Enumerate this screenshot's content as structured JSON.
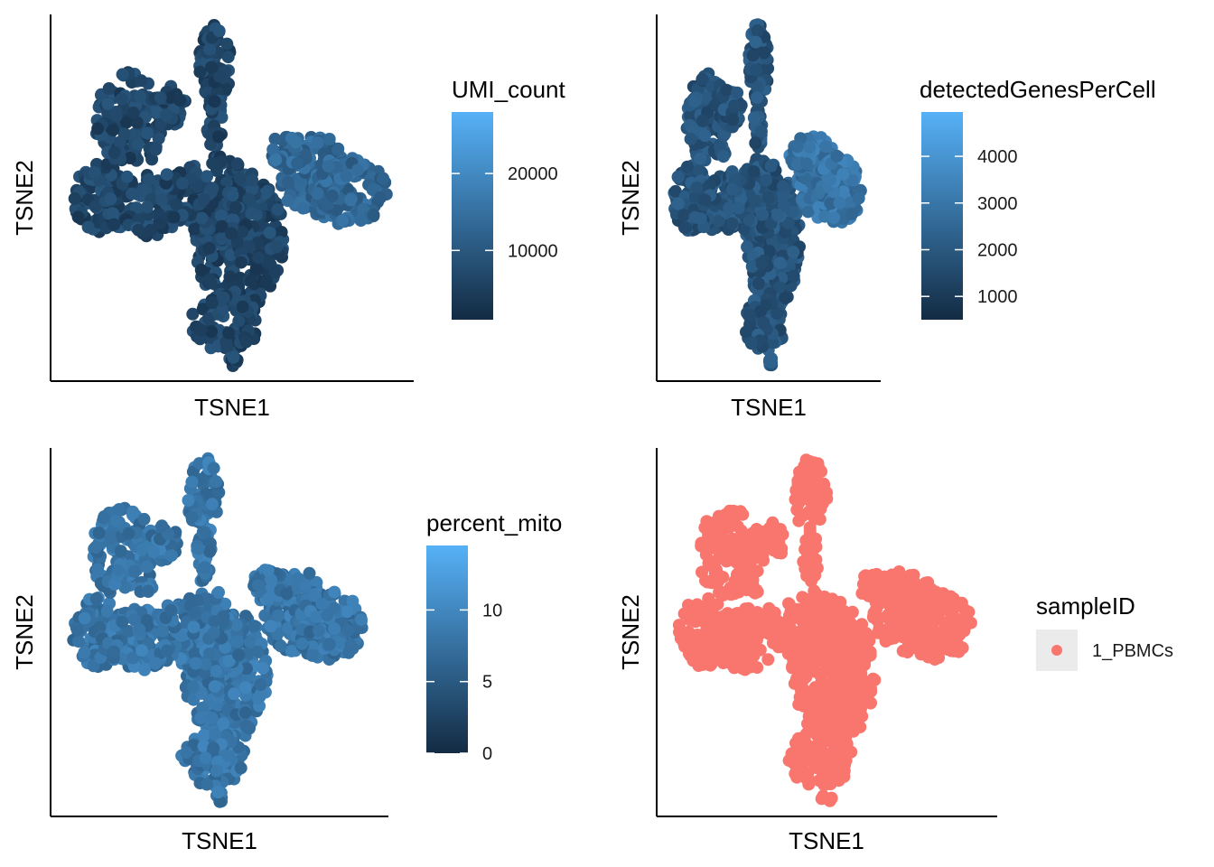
{
  "chart_data": [
    {
      "type": "scatter",
      "xlabel": "TSNE1",
      "ylabel": "TSNE2",
      "color_by": "UMI_count",
      "legend": {
        "title": "UMI_count",
        "kind": "continuous",
        "ticks": [
          10000,
          20000
        ],
        "tick_labels": [
          "10000",
          "20000"
        ],
        "range": [
          1000,
          28000
        ],
        "low_color": "#132B43",
        "high_color": "#56B1F7"
      },
      "point_color_level": 0.2
    },
    {
      "type": "scatter",
      "xlabel": "TSNE1",
      "ylabel": "TSNE2",
      "color_by": "detectedGenesPerCell",
      "legend": {
        "title": "detectedGenesPerCell",
        "kind": "continuous",
        "ticks": [
          1000,
          2000,
          3000,
          4000
        ],
        "tick_labels": [
          "1000",
          "2000",
          "3000",
          "4000"
        ],
        "range": [
          500,
          4950
        ],
        "low_color": "#132B43",
        "high_color": "#56B1F7"
      },
      "point_color_level": 0.3
    },
    {
      "type": "scatter",
      "xlabel": "TSNE1",
      "ylabel": "TSNE2",
      "color_by": "percent_mito",
      "legend": {
        "title": "percent_mito",
        "kind": "continuous",
        "ticks": [
          0,
          5,
          10
        ],
        "tick_labels": [
          "0",
          "5",
          "10"
        ],
        "range": [
          0,
          14.5
        ],
        "low_color": "#132B43",
        "high_color": "#56B1F7"
      },
      "point_color_level": 0.55
    },
    {
      "type": "scatter",
      "xlabel": "TSNE1",
      "ylabel": "TSNE2",
      "color_by": "sampleID",
      "legend": {
        "title": "sampleID",
        "kind": "discrete",
        "items": [
          {
            "label": "1_PBMCs",
            "color": "#F8766D"
          }
        ]
      }
    }
  ],
  "colors": {
    "low": "#132B43",
    "high": "#56B1F7",
    "sample": "#F8766D",
    "legend_key_bg": "#EBEBEB"
  }
}
